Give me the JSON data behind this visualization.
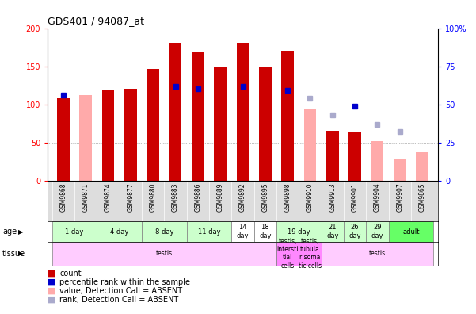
{
  "title": "GDS401 / 94087_at",
  "samples": [
    "GSM9868",
    "GSM9871",
    "GSM9874",
    "GSM9877",
    "GSM9880",
    "GSM9883",
    "GSM9886",
    "GSM9889",
    "GSM9892",
    "GSM9895",
    "GSM9898",
    "GSM9910",
    "GSM9913",
    "GSM9901",
    "GSM9904",
    "GSM9907",
    "GSM9865"
  ],
  "count_values": [
    108,
    0,
    118,
    120,
    147,
    181,
    168,
    150,
    181,
    149,
    170,
    0,
    65,
    63,
    0,
    0,
    0
  ],
  "rank_values": [
    56,
    0,
    0,
    0,
    0,
    62,
    60,
    0,
    62,
    0,
    59,
    0,
    0,
    49,
    0,
    0,
    0
  ],
  "absent_count_values": [
    0,
    112,
    0,
    0,
    0,
    0,
    0,
    0,
    0,
    0,
    0,
    93,
    0,
    0,
    52,
    28,
    37
  ],
  "absent_rank_values": [
    0,
    0,
    0,
    0,
    0,
    0,
    0,
    0,
    0,
    0,
    0,
    54,
    43,
    0,
    37,
    32,
    0
  ],
  "age_groups": [
    {
      "label": "1 day",
      "start": 0,
      "end": 1,
      "color": "#ccffcc"
    },
    {
      "label": "4 day",
      "start": 2,
      "end": 3,
      "color": "#ccffcc"
    },
    {
      "label": "8 day",
      "start": 4,
      "end": 5,
      "color": "#ccffcc"
    },
    {
      "label": "11 day",
      "start": 6,
      "end": 7,
      "color": "#ccffcc"
    },
    {
      "label": "14\nday",
      "start": 8,
      "end": 8,
      "color": "#ffffff"
    },
    {
      "label": "18\nday",
      "start": 9,
      "end": 9,
      "color": "#ffffff"
    },
    {
      "label": "19 day",
      "start": 10,
      "end": 11,
      "color": "#ccffcc"
    },
    {
      "label": "21\nday",
      "start": 12,
      "end": 12,
      "color": "#ccffcc"
    },
    {
      "label": "26\nday",
      "start": 13,
      "end": 13,
      "color": "#ccffcc"
    },
    {
      "label": "29\nday",
      "start": 14,
      "end": 14,
      "color": "#ccffcc"
    },
    {
      "label": "adult",
      "start": 15,
      "end": 16,
      "color": "#66ff66"
    }
  ],
  "tissue_groups": [
    {
      "label": "testis",
      "start": 0,
      "end": 9,
      "color": "#ffccff"
    },
    {
      "label": "testis,\nintersti\ntial\ncells",
      "start": 10,
      "end": 10,
      "color": "#ff88ff"
    },
    {
      "label": "testis,\ntubula\nr soma\ntic cells",
      "start": 11,
      "end": 11,
      "color": "#ff88ff"
    },
    {
      "label": "testis",
      "start": 12,
      "end": 16,
      "color": "#ffccff"
    }
  ],
  "ylim_left": [
    0,
    200
  ],
  "ylim_right": [
    0,
    100
  ],
  "yticks_left": [
    0,
    50,
    100,
    150,
    200
  ],
  "yticks_right": [
    0,
    25,
    50,
    75,
    100
  ],
  "color_count": "#cc0000",
  "color_rank": "#0000cc",
  "color_absent_count": "#ffaaaa",
  "color_absent_rank": "#aaaacc"
}
